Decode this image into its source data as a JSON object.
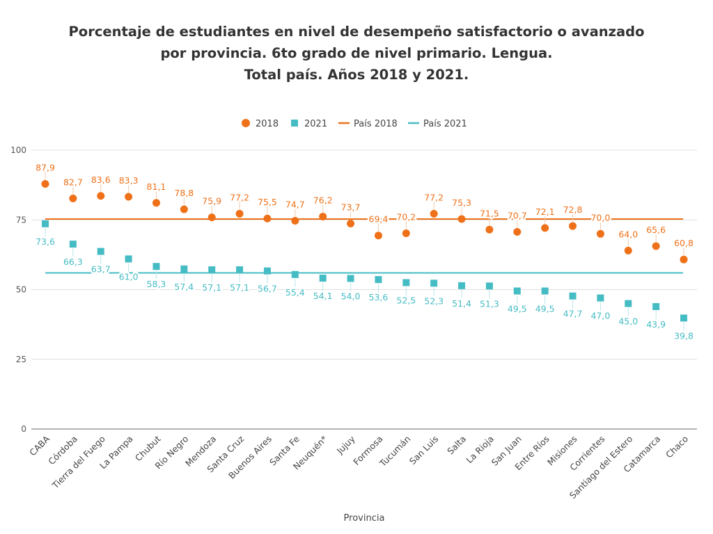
{
  "title": {
    "line1": "Porcentaje de estudiantes en nivel de desempeño satisfactorio o avanzado",
    "line2": "por provincia. 6to grado de nivel primario. Lengua.",
    "line3": "Total país. Años 2018 y 2021."
  },
  "colors": {
    "orange": "#ee7119",
    "teal": "#45bcc4",
    "grid": "#e0e0e0",
    "text": "#555555"
  },
  "chart_data": {
    "type": "scatter",
    "xlabel": "Provincia",
    "ylabel": "",
    "ylim": [
      0,
      100
    ],
    "yticks": [
      0,
      25,
      50,
      75,
      100
    ],
    "grid": true,
    "legend_position": "top",
    "categories": [
      "CABA",
      "Córdoba",
      "Tierra del Fuego",
      "La Pampa",
      "Chubut",
      "Río Negro",
      "Mendoza",
      "Santa Cruz",
      "Buenos Aires",
      "Santa Fe",
      "Neuquén*",
      "Jujuy",
      "Formosa",
      "Tucumán",
      "San Luis",
      "Salta",
      "La Rioja",
      "San Juan",
      "Entre Ríos",
      "Misiones",
      "Corrientes",
      "Santiago del Estero",
      "Catamarca",
      "Chaco"
    ],
    "series": [
      {
        "name": "2018",
        "marker": "circle",
        "color": "#ee7119",
        "values": [
          87.9,
          82.7,
          83.6,
          83.3,
          81.1,
          78.8,
          75.9,
          77.2,
          75.5,
          74.7,
          76.2,
          73.7,
          69.4,
          70.2,
          77.2,
          75.3,
          71.5,
          70.7,
          72.1,
          72.8,
          70.0,
          64.0,
          65.6,
          60.8
        ],
        "labels": [
          "87,9",
          "82,7",
          "83,6",
          "83,3",
          "81,1",
          "78,8",
          "75,9",
          "77,2",
          "75,5",
          "74,7",
          "76,2",
          "73,7",
          "69,4",
          "70,2",
          "77,2",
          "75,3",
          "71,5",
          "70,7",
          "72,1",
          "72,8",
          "70,0",
          "64,0",
          "65,6",
          "60,8"
        ]
      },
      {
        "name": "2021",
        "marker": "square",
        "color": "#45bcc4",
        "values": [
          73.6,
          66.3,
          63.7,
          61.0,
          58.3,
          57.4,
          57.1,
          57.1,
          56.7,
          55.4,
          54.1,
          54.0,
          53.6,
          52.5,
          52.3,
          51.4,
          51.3,
          49.5,
          49.5,
          47.7,
          47.0,
          45.0,
          43.9,
          39.8
        ],
        "labels": [
          "73,6",
          "66,3",
          "63,7",
          "61,0",
          "58,3",
          "57,4",
          "57,1",
          "57,1",
          "56,7",
          "55,4",
          "54,1",
          "54,0",
          "53,6",
          "52,5",
          "52,3",
          "51,4",
          "51,3",
          "49,5",
          "49,5",
          "47,7",
          "47,0",
          "45,0",
          "43,9",
          "39,8"
        ]
      }
    ],
    "reference_lines": [
      {
        "name": "País 2018",
        "value": 75.3,
        "color": "#ee7119"
      },
      {
        "name": "País 2021",
        "value": 56.0,
        "color": "#45bcc4"
      }
    ]
  }
}
